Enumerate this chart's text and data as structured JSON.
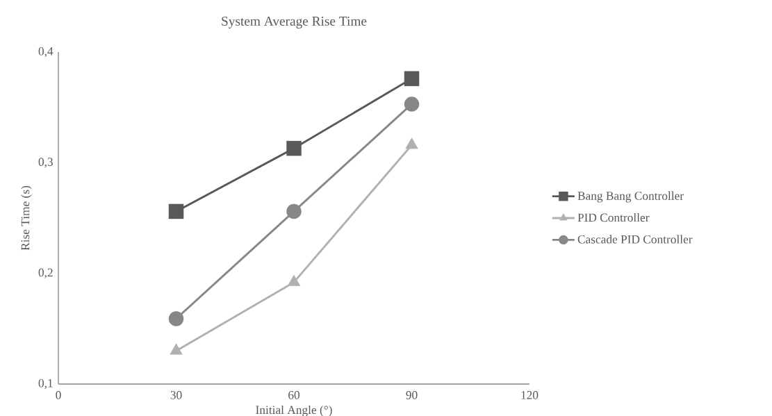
{
  "chart_data": {
    "type": "line",
    "title": "System Average Rise Time",
    "xlabel": "Initial Angle (°)",
    "ylabel": "Rise Time (s)",
    "x": [
      30,
      60,
      90
    ],
    "series": [
      {
        "name": "Bang Bang Controller",
        "color": "#595959",
        "marker": "square",
        "values": [
          0.256,
          0.313,
          0.376
        ]
      },
      {
        "name": "PID Controller",
        "color": "#b0b0b0",
        "marker": "triangle",
        "values": [
          0.13,
          0.192,
          0.316
        ]
      },
      {
        "name": "Cascade PID Controller",
        "color": "#878787",
        "marker": "circle",
        "values": [
          0.159,
          0.256,
          0.353
        ]
      }
    ],
    "xlim": [
      0,
      120
    ],
    "xticks": [
      0,
      30,
      60,
      90,
      120
    ],
    "ylim": [
      0.1,
      0.4
    ],
    "yticks": [
      {
        "value": 0.1,
        "label": "0,1"
      },
      {
        "value": 0.2,
        "label": "0,2"
      },
      {
        "value": 0.3,
        "label": "0,3"
      },
      {
        "value": 0.4,
        "label": "0,4"
      }
    ],
    "grid": false,
    "legend": "right",
    "line_style": "solid"
  }
}
